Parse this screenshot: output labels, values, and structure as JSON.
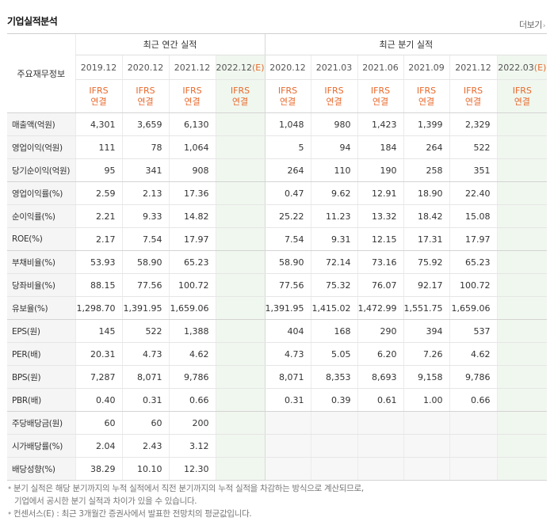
{
  "header": {
    "title": "기업실적분석",
    "more_label": "더보기"
  },
  "table": {
    "row_header": "주요재무정보",
    "groups": {
      "annual": "최근 연간 실적",
      "quarter": "최근 분기 실적"
    },
    "periods": [
      "2019.12",
      "2020.12",
      "2021.12",
      "2022.12(E)",
      "2020.12",
      "2021.03",
      "2021.06",
      "2021.09",
      "2021.12",
      "2022.03(E)"
    ],
    "ifrs_line1": "IFRS",
    "ifrs_line2": "연결",
    "rows": [
      {
        "label": "매출액(억원)",
        "values": [
          "4,301",
          "3,659",
          "6,130",
          "",
          "1,048",
          "980",
          "1,423",
          "1,399",
          "2,329",
          ""
        ]
      },
      {
        "label": "영업이익(억원)",
        "values": [
          "111",
          "78",
          "1,064",
          "",
          "5",
          "94",
          "184",
          "264",
          "522",
          ""
        ]
      },
      {
        "label": "당기순이익(억원)",
        "values": [
          "95",
          "341",
          "908",
          "",
          "264",
          "110",
          "190",
          "258",
          "351",
          ""
        ]
      },
      {
        "label": "영업이익률(%)",
        "values": [
          "2.59",
          "2.13",
          "17.36",
          "",
          "0.47",
          "9.62",
          "12.91",
          "18.90",
          "22.40",
          ""
        ]
      },
      {
        "label": "순이익률(%)",
        "values": [
          "2.21",
          "9.33",
          "14.82",
          "",
          "25.22",
          "11.23",
          "13.32",
          "18.42",
          "15.08",
          ""
        ]
      },
      {
        "label": "ROE(%)",
        "values": [
          "2.17",
          "7.54",
          "17.97",
          "",
          "7.54",
          "9.31",
          "12.15",
          "17.31",
          "17.97",
          ""
        ]
      },
      {
        "label": "부채비율(%)",
        "values": [
          "53.93",
          "58.90",
          "65.23",
          "",
          "58.90",
          "72.14",
          "73.16",
          "75.92",
          "65.23",
          ""
        ]
      },
      {
        "label": "당좌비율(%)",
        "values": [
          "88.15",
          "77.56",
          "100.72",
          "",
          "77.56",
          "75.32",
          "76.07",
          "92.17",
          "100.72",
          ""
        ]
      },
      {
        "label": "유보율(%)",
        "values": [
          "1,298.70",
          "1,391.95",
          "1,659.06",
          "",
          "1,391.95",
          "1,415.02",
          "1,472.99",
          "1,551.75",
          "1,659.06",
          ""
        ]
      },
      {
        "label": "EPS(원)",
        "values": [
          "145",
          "522",
          "1,388",
          "",
          "404",
          "168",
          "290",
          "394",
          "537",
          ""
        ]
      },
      {
        "label": "PER(배)",
        "values": [
          "20.31",
          "4.73",
          "4.62",
          "",
          "4.73",
          "5.05",
          "6.20",
          "7.26",
          "4.62",
          ""
        ]
      },
      {
        "label": "BPS(원)",
        "values": [
          "7,287",
          "8,071",
          "9,786",
          "",
          "8,071",
          "8,353",
          "8,693",
          "9,158",
          "9,786",
          ""
        ]
      },
      {
        "label": "PBR(배)",
        "values": [
          "0.40",
          "0.31",
          "0.66",
          "",
          "0.31",
          "0.39",
          "0.61",
          "1.00",
          "0.66",
          ""
        ]
      },
      {
        "label": "주당배당금(원)",
        "values": [
          "60",
          "60",
          "200",
          "",
          "",
          "",
          "",
          "",
          "",
          ""
        ]
      },
      {
        "label": "시가배당률(%)",
        "values": [
          "2.04",
          "2.43",
          "3.12",
          "",
          "",
          "",
          "",
          "",
          "",
          ""
        ]
      },
      {
        "label": "배당성향(%)",
        "values": [
          "38.29",
          "10.10",
          "12.30",
          "",
          "",
          "",
          "",
          "",
          "",
          ""
        ]
      }
    ]
  },
  "notes": {
    "line1": "분기 실적은 해당 분기까지의 누적 실적에서 직전 분기까지의 누적 실적을 차감하는 방식으로 계산되므로,",
    "line2": "기업에서 공시한 분기 실적과 차이가 있을 수 있습니다.",
    "line3": "컨센서스(E) : 최근 3개월간 증권사에서 발표한 전망치의 평균값입니다."
  }
}
